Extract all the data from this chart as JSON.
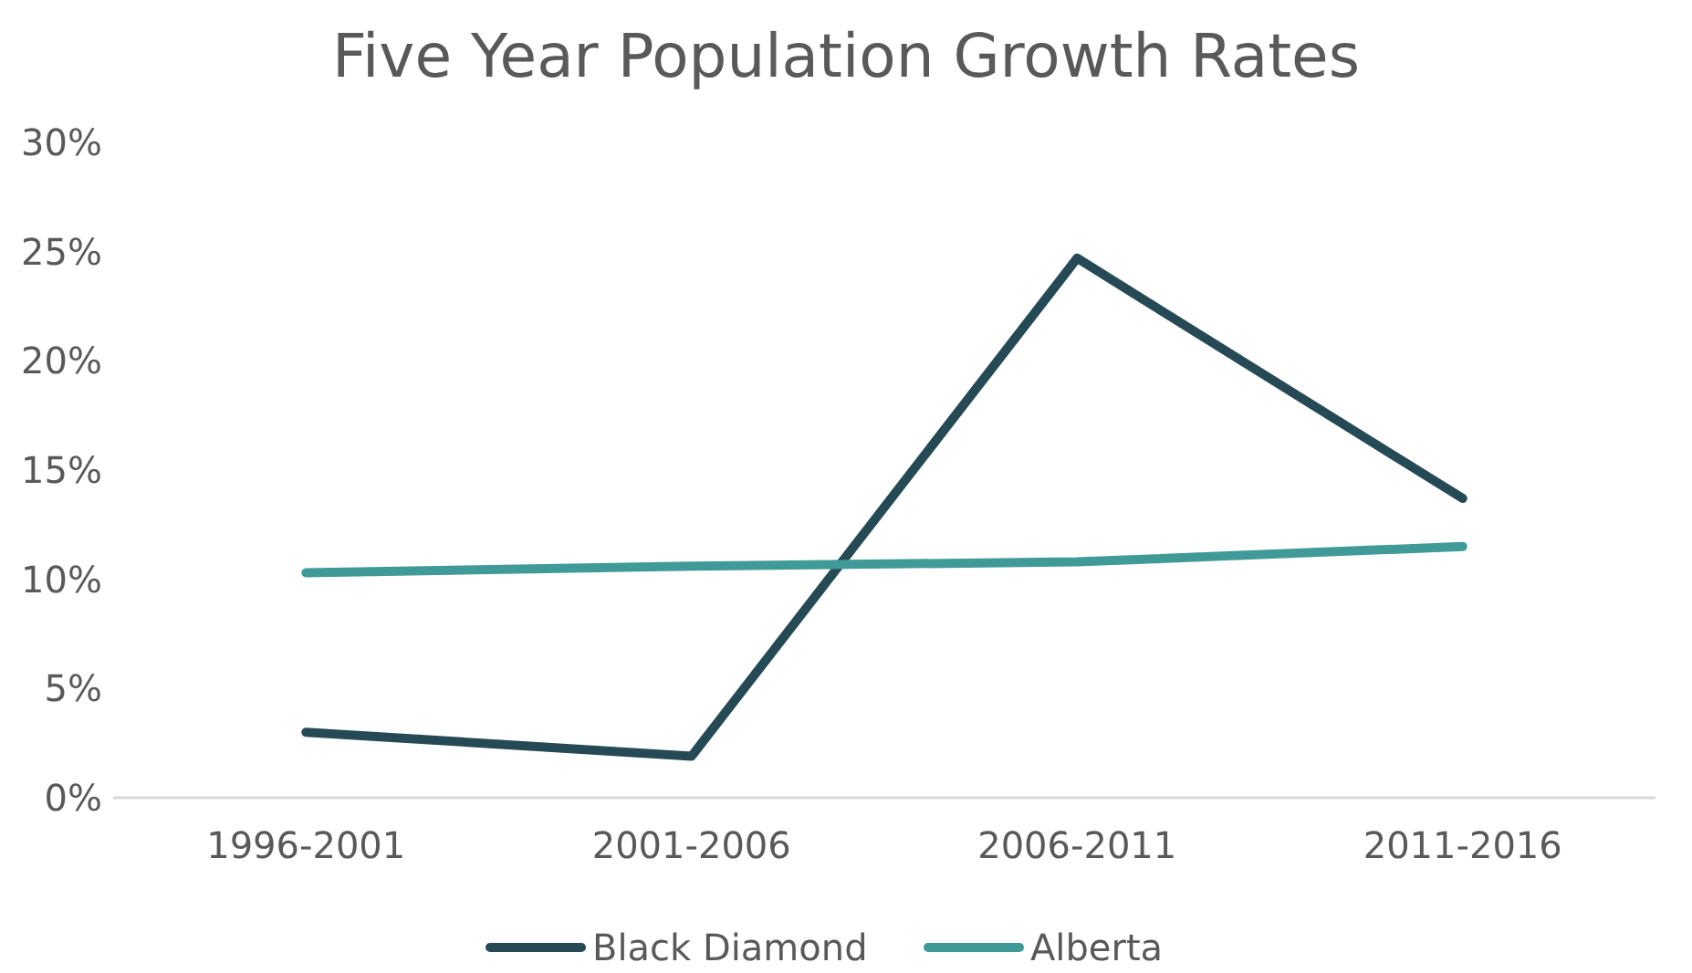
{
  "chart_data": {
    "type": "line",
    "title": "Five Year Population Growth Rates",
    "categories": [
      "1996-2001",
      "2001-2006",
      "2006-2011",
      "2011-2016"
    ],
    "series": [
      {
        "name": "Black Diamond",
        "color": "#264a55",
        "values": [
          3.0,
          1.9,
          24.7,
          13.7
        ]
      },
      {
        "name": "Alberta",
        "color": "#3f9a98",
        "values": [
          10.3,
          10.6,
          10.8,
          11.5
        ]
      }
    ],
    "ylim": [
      0,
      30
    ],
    "yticks": [
      {
        "value": 0,
        "label": "0%"
      },
      {
        "value": 5,
        "label": "5%"
      },
      {
        "value": 10,
        "label": "10%"
      },
      {
        "value": 15,
        "label": "15%"
      },
      {
        "value": 20,
        "label": "20%"
      },
      {
        "value": 25,
        "label": "25%"
      },
      {
        "value": 30,
        "label": "30%"
      }
    ],
    "grid": false,
    "legend": "bottom",
    "marker": "none",
    "line_style": "solid"
  }
}
